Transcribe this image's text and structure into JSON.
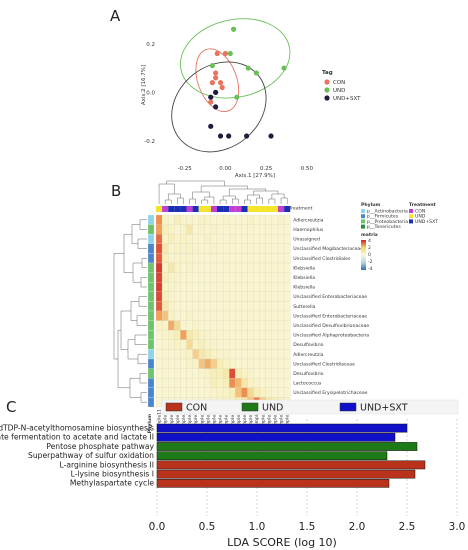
{
  "chart_data": [
    {
      "type": "scatter",
      "panel_label": "A",
      "xlabel": "Axis.1   [27.9%]",
      "ylabel": "Axis.2   [16.7%]",
      "xticks": [
        "-0.25",
        "0.00",
        "0.25",
        "0.50"
      ],
      "yticks": [
        "0.2",
        "0.0",
        "-0.2"
      ],
      "xlim": [
        -0.42,
        0.55
      ],
      "ylim": [
        -0.32,
        0.36
      ],
      "legend_title": "Tag",
      "legend_position": "right",
      "series": [
        {
          "name": "CON",
          "color": "#e8735f",
          "points": [
            [
              -0.06,
              0.08
            ],
            [
              -0.06,
              0.06
            ],
            [
              -0.08,
              0.04
            ],
            [
              -0.03,
              0.04
            ],
            [
              -0.02,
              0.02
            ],
            [
              -0.05,
              0.16
            ],
            [
              -0.09,
              -0.04
            ],
            [
              0.0,
              0.16
            ]
          ]
        },
        {
          "name": "UND",
          "color": "#6abf59",
          "points": [
            [
              0.05,
              0.26
            ],
            [
              0.03,
              0.16
            ],
            [
              0.14,
              0.1
            ],
            [
              0.36,
              0.1
            ],
            [
              0.19,
              0.08
            ],
            [
              0.07,
              -0.02
            ],
            [
              -0.08,
              0.11
            ]
          ]
        },
        {
          "name": "UND+SXT",
          "color": "#1f1d3d",
          "points": [
            [
              -0.09,
              -0.02
            ],
            [
              -0.06,
              -0.06
            ],
            [
              -0.06,
              0.0
            ],
            [
              -0.09,
              -0.14
            ],
            [
              -0.03,
              -0.18
            ],
            [
              0.02,
              -0.18
            ],
            [
              0.13,
              -0.18
            ],
            [
              0.28,
              -0.18
            ]
          ]
        }
      ],
      "ellipses": [
        {
          "series": "CON",
          "color": "#e8735f",
          "cx": -0.05,
          "cy": 0.05,
          "rx": 0.2,
          "ry": 0.08,
          "angle": 70
        },
        {
          "series": "UND",
          "color": "#6abf59",
          "cx": 0.06,
          "cy": 0.14,
          "rx": 0.34,
          "ry": 0.16,
          "angle": -12
        },
        {
          "series": "UND+SXT",
          "color": "#444444",
          "cx": -0.04,
          "cy": -0.06,
          "rx": 0.31,
          "ry": 0.17,
          "angle": -38
        }
      ]
    },
    {
      "type": "heatmap",
      "panel_label": "B",
      "columns": [
        "sample11",
        "sample15",
        "sample18",
        "sample19",
        "sample26",
        "sample28",
        "sample14",
        "sample20",
        "sample22",
        "sample24",
        "sample17",
        "sample13",
        "sample30",
        "sample29",
        "sample21",
        "sample16",
        "sample9",
        "sample23",
        "sample12",
        "sample10",
        "sample27",
        "sample25"
      ],
      "rows": [
        "Adlercreutzia",
        "Haemophilus",
        "Unassigned",
        "Unclassified Mogibacteriaceae",
        "Unclassified Clostridiales",
        "Klebsiella",
        "Klebsiella",
        "Klebsiella",
        "Unclassified Enterobacteriaceae",
        "Sutterella",
        "Unclassified Enterobacteriaceae",
        "Unclassified Desulfovibrionaceae",
        "Unclassified Alphaproteobacteria",
        "Desulfovibrio",
        "Adlercreutzia",
        "Unclassified Clostridiaceae",
        "Desulfovibrio",
        "Lactococcus",
        "Unclassified Erysipelotrichaceae",
        "Unclassified Erysipelotrichaceae"
      ],
      "treatment_label": "Treatment",
      "phylum_label": "Phylum",
      "column_treatment": [
        "UND",
        "CON",
        "UND+SXT",
        "UND+SXT",
        "UND+SXT",
        "CON",
        "UND+SXT",
        "UND",
        "UND",
        "CON",
        "UND+SXT",
        "UND+SXT",
        "CON",
        "CON",
        "UND+SXT",
        "UND",
        "UND",
        "UND",
        "UND",
        "UND",
        "CON",
        "UND+SXT"
      ],
      "row_phylum": [
        "p__Actinobacteria",
        "p__Proteobacteria",
        "p__Actinobacteria",
        "p__Firmicutes",
        "p__Firmicutes",
        "p__Proteobacteria",
        "p__Proteobacteria",
        "p__Proteobacteria",
        "p__Proteobacteria",
        "p__Proteobacteria",
        "p__Proteobacteria",
        "p__Proteobacteria",
        "p__Proteobacteria",
        "p__Proteobacteria",
        "p__Actinobacteria",
        "p__Firmicutes",
        "p__Proteobacteria",
        "p__Firmicutes",
        "p__Firmicutes",
        "p__Firmicutes"
      ],
      "phylum_legend": [
        {
          "name": "p__Actinobacteria",
          "color": "#8fd3e8"
        },
        {
          "name": "p__Firmicutes",
          "color": "#4a86c8"
        },
        {
          "name": "p__Proteobacteria",
          "color": "#6fc36b"
        },
        {
          "name": "p__Tenericutes",
          "color": "#2f8a3a"
        }
      ],
      "treatment_legend": [
        {
          "name": "CON",
          "color": "#c23fd0"
        },
        {
          "name": "UND",
          "color": "#f4e42a"
        },
        {
          "name": "UND+SXT",
          "color": "#1a2fb5"
        }
      ],
      "colorbar_title": "matrix",
      "colorbar_ticks": [
        "4",
        "2",
        "0",
        "-2",
        "-4"
      ],
      "colorbar_range": [
        -4,
        4
      ],
      "values": [
        [
          2.4,
          0.4,
          0.2,
          0.6,
          0.3,
          0.3,
          0.2,
          0.4,
          0.3,
          0.2,
          0.2,
          0.3,
          0.2,
          0.2,
          0.2,
          0.4,
          0.2,
          0.2,
          0.2,
          0.2,
          0.3,
          0.2
        ],
        [
          2.2,
          0.6,
          0.4,
          0.2,
          0.3,
          0.8,
          0.2,
          0.3,
          0.2,
          0.3,
          0.2,
          0.2,
          0.2,
          0.2,
          0.2,
          0.2,
          0.2,
          0.2,
          0.2,
          0.2,
          0.2,
          0.2
        ],
        [
          2.8,
          0.4,
          0.6,
          0.3,
          0.4,
          0.3,
          0.2,
          0.2,
          0.4,
          0.2,
          0.2,
          0.2,
          0.3,
          0.2,
          0.2,
          0.2,
          0.2,
          0.2,
          0.2,
          0.2,
          0.2,
          0.2
        ],
        [
          3.2,
          0.8,
          0.3,
          0.4,
          0.3,
          0.4,
          0.3,
          0.2,
          0.2,
          0.3,
          0.2,
          0.2,
          0.2,
          0.2,
          0.2,
          0.2,
          0.2,
          0.2,
          0.2,
          0.2,
          0.2,
          0.2
        ],
        [
          3.0,
          0.6,
          0.3,
          0.3,
          0.3,
          0.3,
          0.2,
          0.2,
          0.2,
          0.2,
          0.2,
          0.2,
          0.2,
          0.2,
          0.2,
          0.2,
          0.2,
          0.2,
          0.2,
          0.2,
          0.2,
          0.2
        ],
        [
          3.6,
          0.4,
          0.8,
          0.4,
          0.2,
          0.3,
          0.2,
          0.2,
          0.2,
          0.2,
          0.2,
          0.2,
          0.2,
          0.2,
          0.2,
          0.2,
          0.2,
          0.2,
          0.2,
          0.2,
          0.2,
          0.2
        ],
        [
          3.4,
          0.6,
          0.4,
          0.3,
          0.2,
          0.2,
          0.2,
          0.2,
          0.2,
          0.2,
          0.2,
          0.2,
          0.2,
          0.2,
          0.2,
          0.2,
          0.2,
          0.2,
          0.2,
          0.2,
          0.2,
          0.2
        ],
        [
          3.5,
          0.4,
          0.3,
          0.3,
          0.2,
          0.2,
          0.2,
          0.2,
          0.2,
          0.2,
          0.2,
          0.2,
          0.2,
          0.2,
          0.2,
          0.2,
          0.2,
          0.2,
          0.2,
          0.2,
          0.2,
          0.2
        ],
        [
          3.3,
          0.5,
          0.3,
          0.2,
          0.2,
          0.2,
          0.2,
          0.2,
          0.2,
          0.2,
          0.2,
          0.2,
          0.2,
          0.2,
          0.2,
          0.2,
          0.2,
          0.2,
          0.2,
          0.2,
          0.2,
          0.2
        ],
        [
          3.0,
          0.8,
          0.4,
          0.2,
          0.2,
          0.2,
          0.2,
          0.2,
          0.2,
          0.2,
          0.2,
          0.2,
          0.2,
          0.2,
          0.2,
          0.2,
          0.2,
          0.2,
          0.2,
          0.2,
          0.2,
          0.2
        ],
        [
          2.2,
          1.6,
          0.4,
          0.2,
          0.2,
          0.3,
          0.2,
          0.2,
          0.2,
          0.2,
          0.2,
          0.2,
          0.2,
          0.2,
          0.2,
          0.2,
          0.2,
          0.2,
          0.2,
          0.2,
          0.2,
          0.2
        ],
        [
          0.4,
          0.3,
          2.0,
          1.2,
          0.3,
          0.2,
          0.4,
          0.2,
          0.2,
          0.2,
          0.2,
          0.2,
          0.2,
          0.2,
          0.2,
          0.2,
          0.2,
          0.2,
          0.2,
          0.2,
          0.2,
          0.2
        ],
        [
          0.2,
          0.3,
          0.4,
          0.6,
          2.2,
          0.8,
          0.6,
          0.4,
          0.3,
          0.2,
          0.2,
          0.2,
          0.2,
          0.2,
          0.2,
          0.2,
          0.2,
          0.2,
          0.2,
          0.2,
          0.2,
          0.2
        ],
        [
          0.2,
          0.2,
          0.3,
          0.4,
          0.3,
          1.2,
          0.4,
          0.6,
          0.3,
          0.3,
          0.2,
          0.2,
          0.2,
          0.2,
          0.2,
          0.2,
          0.2,
          0.2,
          0.2,
          0.2,
          0.2,
          0.2
        ],
        [
          0.2,
          0.2,
          0.2,
          0.2,
          0.3,
          0.4,
          1.4,
          0.8,
          0.6,
          0.4,
          0.3,
          0.3,
          0.2,
          0.2,
          0.2,
          0.2,
          0.2,
          0.2,
          0.2,
          0.2,
          0.2,
          0.2
        ],
        [
          0.2,
          0.2,
          0.2,
          0.2,
          0.2,
          0.3,
          0.4,
          1.6,
          2.0,
          1.4,
          0.6,
          0.4,
          0.3,
          0.2,
          0.2,
          0.2,
          0.2,
          0.2,
          0.2,
          0.2,
          0.2,
          0.2
        ],
        [
          0.2,
          0.2,
          0.2,
          0.2,
          0.2,
          0.2,
          0.2,
          0.3,
          0.4,
          0.6,
          0.6,
          0.8,
          3.2,
          0.6,
          0.4,
          0.3,
          0.2,
          0.2,
          0.2,
          0.2,
          0.2,
          0.2
        ],
        [
          0.2,
          0.2,
          0.2,
          0.2,
          0.2,
          0.2,
          0.2,
          0.2,
          0.3,
          0.6,
          0.4,
          0.6,
          2.4,
          1.8,
          0.8,
          0.4,
          0.3,
          0.2,
          0.2,
          0.2,
          0.2,
          0.2
        ],
        [
          0.2,
          0.2,
          0.2,
          0.2,
          0.2,
          0.2,
          0.2,
          0.2,
          0.2,
          0.3,
          0.4,
          0.4,
          0.6,
          1.6,
          2.4,
          1.2,
          0.6,
          0.4,
          0.3,
          0.2,
          0.2,
          0.2
        ],
        [
          0.2,
          0.2,
          0.2,
          0.2,
          0.2,
          0.2,
          0.2,
          0.2,
          0.2,
          0.2,
          0.2,
          0.3,
          0.4,
          0.6,
          1.0,
          1.6,
          2.6,
          1.4,
          0.8,
          0.6,
          0.4,
          0.2
        ]
      ]
    },
    {
      "type": "bar",
      "orientation": "horizontal",
      "panel_label": "C",
      "xlabel": "LDA SCORE (log 10)",
      "xticks": [
        "0.0",
        "0.5",
        "1.0",
        "1.5",
        "2.0",
        "2.5",
        "3.0"
      ],
      "xlim": [
        0,
        3.0
      ],
      "legend": [
        {
          "name": "CON",
          "color": "#b8321c"
        },
        {
          "name": "UND",
          "color": "#1e7a16"
        },
        {
          "name": "UND+SXT",
          "color": "#1010c8"
        }
      ],
      "legend_position": "top",
      "bars": [
        {
          "label": "dTDP-N-acetylthomosamine biosynthesis",
          "group": "UND+SXT",
          "value": 2.5
        },
        {
          "label": "Pyruvate fermentation to acetate and lactate II",
          "group": "UND+SXT",
          "value": 2.38
        },
        {
          "label": "Pentose phosphate pathway",
          "group": "UND",
          "value": 2.6
        },
        {
          "label": "Superpathway of sulfur oxidation",
          "group": "UND",
          "value": 2.3
        },
        {
          "label": "L-arginine biosynthesis II",
          "group": "CON",
          "value": 2.68
        },
        {
          "label": "L-lysine biosynthesis I",
          "group": "CON",
          "value": 2.58
        },
        {
          "label": "Methylaspartate cycle",
          "group": "CON",
          "value": 2.32
        }
      ]
    }
  ]
}
